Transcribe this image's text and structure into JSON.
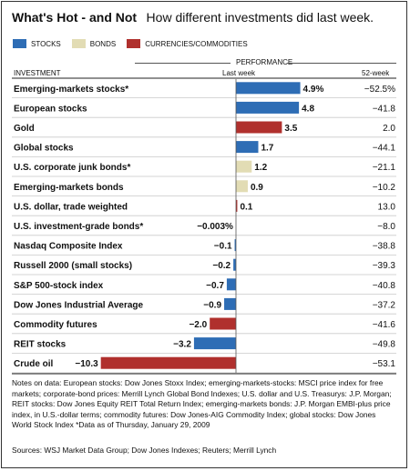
{
  "title": "What's Hot - and Not",
  "subtitle": "How different investments did last week.",
  "legend": [
    {
      "label": "STOCKS",
      "color": "#2e6db5"
    },
    {
      "label": "BONDS",
      "color": "#e2dcb4"
    },
    {
      "label": "CURRENCIES/COMMODITIES",
      "color": "#b0302d"
    }
  ],
  "headers": {
    "performance": "PERFORMANCE",
    "investment": "INVESTMENT",
    "last_week": "Last week",
    "week52": "52-week"
  },
  "chart_data": {
    "type": "bar",
    "title": "What's Hot - and Not",
    "subtitle": "How different investments did last week.",
    "categories": [
      "Emerging-markets stocks*",
      "European stocks",
      "Gold",
      "Global stocks",
      "U.S. corporate junk bonds*",
      "Emerging-markets bonds",
      "U.S. dollar, trade weighted",
      "U.S. investment-grade bonds*",
      "Nasdaq Composite Index",
      "Russell 2000 (small stocks)",
      "S&P 500-stock index",
      "Dow Jones Industrial Average",
      "Commodity futures",
      "REIT stocks",
      "Crude oil"
    ],
    "values": [
      4.9,
      4.8,
      3.5,
      1.7,
      1.2,
      0.9,
      0.1,
      -0.003,
      -0.1,
      -0.2,
      -0.7,
      -0.9,
      -2.0,
      -3.2,
      -10.3
    ],
    "labels": [
      "4.9%",
      "4.8",
      "3.5",
      "1.7",
      "1.2",
      "0.9",
      "0.1",
      "−0.003%",
      "−0.1",
      "−0.2",
      "−0.7",
      "−0.9",
      "−2.0",
      "−3.2",
      "−10.3"
    ],
    "week52": [
      "−52.5%",
      "−41.8",
      "2.0",
      "−44.1",
      "−21.1",
      "−10.2",
      "13.0",
      "−8.0",
      "−38.8",
      "−39.3",
      "−40.8",
      "−37.2",
      "−41.6",
      "−49.8",
      "−53.1"
    ],
    "groups": [
      "stocks",
      "stocks",
      "currencies",
      "stocks",
      "bonds",
      "bonds",
      "currencies",
      "bonds",
      "stocks",
      "stocks",
      "stocks",
      "stocks",
      "currencies",
      "stocks",
      "currencies"
    ],
    "group_colors": {
      "stocks": "#2e6db5",
      "bonds": "#e2dcb4",
      "currencies": "#b0302d"
    },
    "xlim": [
      -10.3,
      4.9
    ]
  },
  "notes": "Notes on data: European stocks: Dow Jones Stoxx Index; emerging-markets-stocks: MSCI price index for free markets; corporate-bond prices: Merrill Lynch Global Bond Indexes; U.S. dollar and U.S. Treasurys: J.P. Morgan; REIT stocks: Dow Jones Equity REIT Total Return Index; emerging-markets bonds: J.P. Morgan EMBI-plus price index, in U.S.-dollar terms; commodity futures: Dow Jones-AIG Commodity Index; global stocks: Dow Jones World Stock Index  *Data as of Thursday, January 29, 2009",
  "sources": "Sources: WSJ Market Data Group; Dow Jones Indexes; Reuters; Merrill Lynch"
}
